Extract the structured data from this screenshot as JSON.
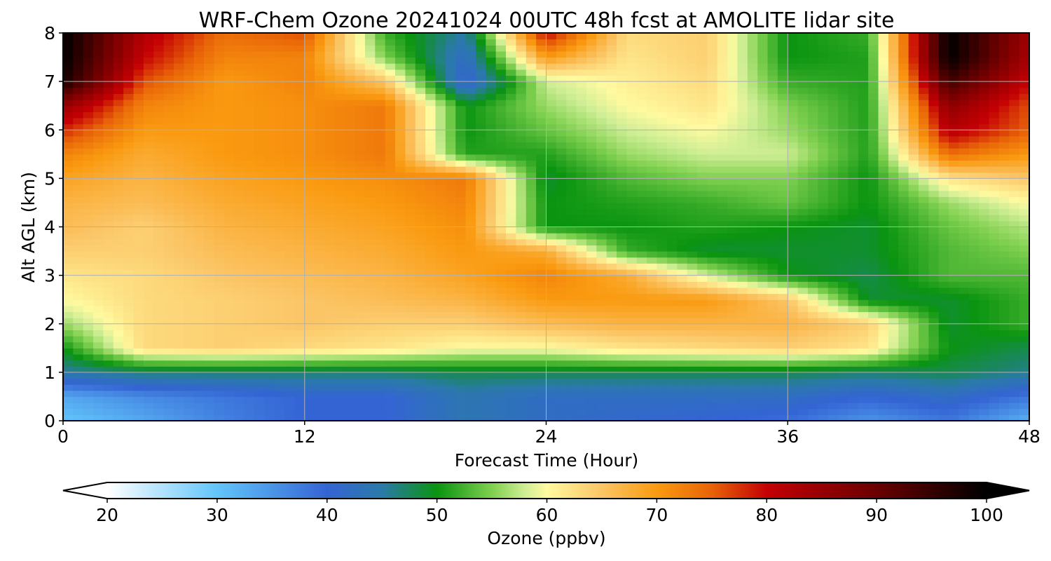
{
  "chart_data": {
    "type": "heatmap",
    "title": "WRF-Chem Ozone  20241024 00UTC 48h fcst at AMOLITE lidar site",
    "xlabel": "Forecast Time (Hour)",
    "ylabel": "Alt AGL (km)",
    "xlim": [
      0,
      48
    ],
    "ylim": [
      0,
      8
    ],
    "x_ticks": [
      0,
      12,
      24,
      36,
      48
    ],
    "y_ticks": [
      0,
      1,
      2,
      3,
      4,
      5,
      6,
      7,
      8
    ],
    "grid": true,
    "x": [
      0,
      4,
      8,
      12,
      16,
      20,
      24,
      28,
      32,
      36,
      40,
      44,
      48
    ],
    "y": [
      0,
      0.5,
      1,
      1.5,
      2,
      2.5,
      3,
      3.5,
      4,
      4.5,
      5,
      5.5,
      6,
      6.5,
      7,
      7.5,
      8
    ],
    "z": [
      [
        30,
        33,
        37,
        40,
        40,
        44,
        42,
        41,
        40,
        39,
        35,
        38,
        32
      ],
      [
        33,
        36,
        38,
        40,
        40,
        44,
        42,
        42,
        42,
        42,
        40,
        42,
        38
      ],
      [
        45,
        47,
        47,
        47,
        47,
        48,
        48,
        48,
        48,
        48,
        47,
        48,
        46
      ],
      [
        50,
        63,
        64,
        63,
        62,
        60,
        60,
        62,
        63,
        64,
        62,
        50,
        48
      ],
      [
        56,
        63,
        64,
        65,
        64,
        64,
        66,
        67,
        67,
        67,
        64,
        49,
        52
      ],
      [
        60,
        63,
        64,
        65,
        66,
        67,
        70,
        70,
        70,
        65,
        49,
        49,
        52
      ],
      [
        62,
        63,
        65,
        66,
        67,
        69,
        72,
        68,
        58,
        50,
        48,
        53,
        53
      ],
      [
        64,
        64,
        66,
        67,
        68,
        70,
        68,
        52,
        49,
        49,
        49,
        53,
        55
      ],
      [
        66,
        64,
        67,
        68,
        69,
        71,
        50,
        50,
        51,
        50,
        49,
        54,
        57
      ],
      [
        67,
        66,
        68,
        69,
        70,
        72,
        50,
        51,
        52,
        54,
        50,
        56,
        60
      ],
      [
        69,
        67,
        69,
        70,
        71,
        73,
        49,
        53,
        55,
        55,
        50,
        62,
        65
      ],
      [
        72,
        68,
        70,
        71,
        73,
        51,
        51,
        56,
        58,
        58,
        51,
        74,
        70
      ],
      [
        78,
        70,
        70,
        71,
        73,
        50,
        54,
        58,
        60,
        56,
        51,
        82,
        75
      ],
      [
        85,
        72,
        70,
        71,
        73,
        50,
        56,
        60,
        62,
        55,
        51,
        86,
        76
      ],
      [
        98,
        76,
        70,
        72,
        65,
        40,
        58,
        61,
        63,
        52,
        51,
        94,
        80
      ],
      [
        100,
        80,
        72,
        72,
        55,
        42,
        70,
        62,
        64,
        50,
        51,
        100,
        83
      ],
      [
        100,
        82,
        74,
        76,
        52,
        45,
        80,
        63,
        64,
        50,
        52,
        100,
        84
      ]
    ],
    "colorbar": {
      "label": "Ozone  (ppbv)",
      "min": 20,
      "max": 100,
      "ticks": [
        20,
        30,
        40,
        50,
        60,
        70,
        80,
        90,
        100
      ],
      "extend": "both",
      "color_stops": [
        [
          20,
          "#ffffff"
        ],
        [
          30,
          "#62c5fb"
        ],
        [
          40,
          "#3464d4"
        ],
        [
          45,
          "#2a7aa8"
        ],
        [
          50,
          "#0a9410"
        ],
        [
          55,
          "#7fd04f"
        ],
        [
          58,
          "#cfee95"
        ],
        [
          60,
          "#fffaa0"
        ],
        [
          65,
          "#fbc566"
        ],
        [
          70,
          "#fa9a10"
        ],
        [
          75,
          "#e86308"
        ],
        [
          80,
          "#c40004"
        ],
        [
          90,
          "#6a0000"
        ],
        [
          100,
          "#000000"
        ]
      ]
    }
  }
}
